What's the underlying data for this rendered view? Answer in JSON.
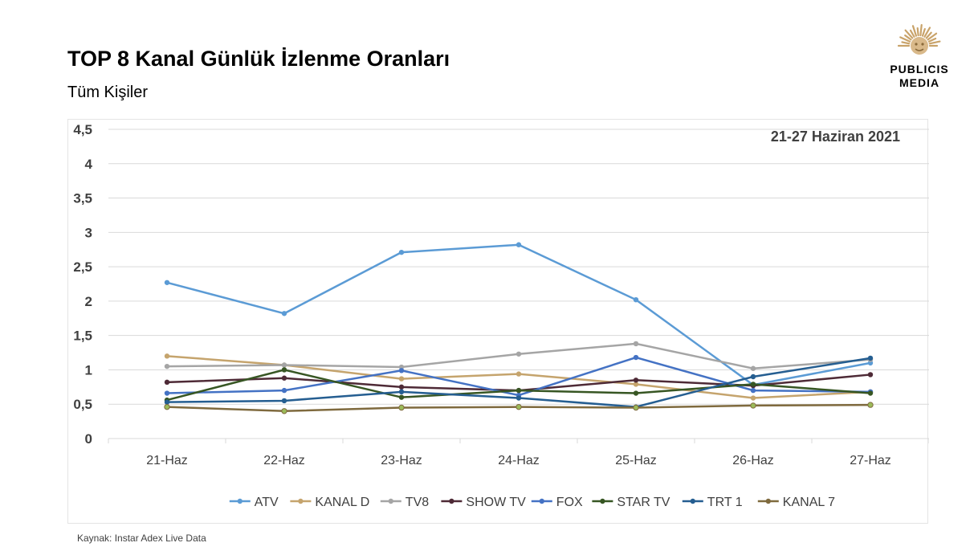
{
  "header": {
    "title": "TOP 8 Kanal Günlük İzlenme Oranları",
    "subtitle": "Tüm Kişiler"
  },
  "logo": {
    "icon": "sun-lion-logo-icon",
    "line1": "PUBLICIS",
    "line2": "MEDIA",
    "color": "#c9a36a"
  },
  "footer": {
    "source": "Kaynak: Instar  Adex Live Data"
  },
  "chart_data": {
    "type": "line",
    "annotation": "21-27 Haziran  2021",
    "categories": [
      "21-Haz",
      "22-Haz",
      "23-Haz",
      "24-Haz",
      "25-Haz",
      "26-Haz",
      "27-Haz"
    ],
    "ylim": [
      0,
      4.5
    ],
    "yticks": [
      "0",
      "0,5",
      "1",
      "1,5",
      "2",
      "2,5",
      "3",
      "3,5",
      "4",
      "4,5"
    ],
    "grid": true,
    "legend_position": "bottom",
    "series": [
      {
        "name": "ATV",
        "color": "#5b9bd5",
        "values": [
          2.27,
          1.82,
          2.71,
          2.82,
          2.02,
          0.78,
          1.1
        ]
      },
      {
        "name": "KANAL D",
        "color": "#c5a46d",
        "values": [
          1.2,
          1.07,
          0.87,
          0.94,
          0.79,
          0.59,
          0.68
        ]
      },
      {
        "name": "TV8",
        "color": "#a5a5a5",
        "values": [
          1.05,
          1.07,
          1.04,
          1.23,
          1.38,
          1.02,
          1.15
        ]
      },
      {
        "name": "SHOW TV",
        "color": "#4e2a36",
        "values": [
          0.82,
          0.88,
          0.75,
          0.7,
          0.85,
          0.77,
          0.93
        ]
      },
      {
        "name": "FOX",
        "color": "#4472c4",
        "values": [
          0.66,
          0.7,
          0.99,
          0.63,
          1.18,
          0.7,
          0.68
        ]
      },
      {
        "name": "STAR TV",
        "color": "#375623",
        "values": [
          0.56,
          1.0,
          0.6,
          0.7,
          0.66,
          0.79,
          0.66
        ]
      },
      {
        "name": "TRT 1",
        "color": "#255e91",
        "values": [
          0.53,
          0.55,
          0.68,
          0.59,
          0.46,
          0.9,
          1.17
        ]
      },
      {
        "name": "KANAL 7",
        "color": "#7f6a3e",
        "values": [
          0.46,
          0.4,
          0.45,
          0.46,
          0.45,
          0.48,
          0.49
        ]
      }
    ]
  }
}
